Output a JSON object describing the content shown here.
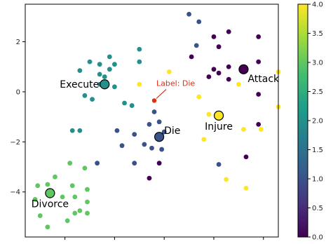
{
  "chart_data": {
    "type": "scatter",
    "title": "",
    "xlabel": "",
    "ylabel": "",
    "xlim": [
      -1.8,
      3.3
    ],
    "ylim": [
      -5.8,
      3.5
    ],
    "y_ticks": [
      -4,
      -2,
      0,
      2
    ],
    "y_tick_labels": [
      "−4",
      "−2",
      "0",
      "2"
    ],
    "x_ticks": [
      -1.0,
      0.0,
      1.0,
      2.0,
      3.0
    ],
    "grid": false,
    "colormap": "viridis",
    "colorbar": {
      "vmin": 0.0,
      "vmax": 4.0,
      "ticks": [
        0.0,
        0.5,
        1.0,
        1.5,
        2.0,
        2.5,
        3.0,
        3.5,
        4.0
      ],
      "tick_labels": [
        "0.0",
        "0.5",
        "1.0",
        "1.5",
        "2.0",
        "2.5",
        "3.0",
        "3.5",
        "4.0"
      ]
    },
    "points": [
      {
        "x": 1.5,
        "y": 3.1,
        "c": 1
      },
      {
        "x": 1.7,
        "y": 2.8,
        "c": 1
      },
      {
        "x": 2.3,
        "y": 2.4,
        "c": 0
      },
      {
        "x": 2.0,
        "y": 2.2,
        "c": 0
      },
      {
        "x": 2.9,
        "y": 2.2,
        "c": 0
      },
      {
        "x": 1.65,
        "y": 1.85,
        "c": 1
      },
      {
        "x": 2.1,
        "y": 1.8,
        "c": 0
      },
      {
        "x": 1.55,
        "y": 1.4,
        "c": 0
      },
      {
        "x": 2.9,
        "y": 1.2,
        "c": 0
      },
      {
        "x": 2.3,
        "y": 1.0,
        "c": 0
      },
      {
        "x": 2.0,
        "y": 0.9,
        "c": 0
      },
      {
        "x": 2.1,
        "y": 0.75,
        "c": 0
      },
      {
        "x": 1.9,
        "y": 0.6,
        "c": 0
      },
      {
        "x": 2.3,
        "y": 0.5,
        "c": 0
      },
      {
        "x": 2.5,
        "y": 0.3,
        "c": 4
      },
      {
        "x": 2.9,
        "y": -0.1,
        "c": 0
      },
      {
        "x": 1.1,
        "y": 0.8,
        "c": 4
      },
      {
        "x": 3.3,
        "y": 0.8,
        "c": 4
      },
      {
        "x": 0.5,
        "y": 0.3,
        "c": 4
      },
      {
        "x": 1.7,
        "y": -0.2,
        "c": 4
      },
      {
        "x": 1.9,
        "y": -0.9,
        "c": 4
      },
      {
        "x": 2.6,
        "y": -1.5,
        "c": 4
      },
      {
        "x": 2.95,
        "y": -1.5,
        "c": 4
      },
      {
        "x": 3.3,
        "y": -0.6,
        "c": 4
      },
      {
        "x": 2.9,
        "y": -1.3,
        "c": 0
      },
      {
        "x": 1.8,
        "y": -1.9,
        "c": 4
      },
      {
        "x": 2.1,
        "y": -2.9,
        "c": 1
      },
      {
        "x": 2.65,
        "y": -2.6,
        "c": 0
      },
      {
        "x": 2.25,
        "y": -3.5,
        "c": 4
      },
      {
        "x": 2.65,
        "y": -3.85,
        "c": 4
      },
      {
        "x": -0.1,
        "y": 1.4,
        "c": 2
      },
      {
        "x": 0.5,
        "y": 1.7,
        "c": 2
      },
      {
        "x": 0.5,
        "y": 1.2,
        "c": 2
      },
      {
        "x": -0.5,
        "y": 1.2,
        "c": 2
      },
      {
        "x": -0.3,
        "y": 1.1,
        "c": 2
      },
      {
        "x": 0.0,
        "y": 1.1,
        "c": 2
      },
      {
        "x": -0.7,
        "y": 0.85,
        "c": 2
      },
      {
        "x": -0.1,
        "y": 0.9,
        "c": 2
      },
      {
        "x": -0.3,
        "y": 0.7,
        "c": 2
      },
      {
        "x": -0.2,
        "y": 0.6,
        "c": 2
      },
      {
        "x": -0.3,
        "y": 0.3,
        "c": 2
      },
      {
        "x": 0.0,
        "y": 0.2,
        "c": 2
      },
      {
        "x": -0.6,
        "y": -0.15,
        "c": 2
      },
      {
        "x": -0.45,
        "y": -0.3,
        "c": 2
      },
      {
        "x": 0.2,
        "y": -0.45,
        "c": 2
      },
      {
        "x": 0.35,
        "y": -0.55,
        "c": 2
      },
      {
        "x": 0.8,
        "y": -0.8,
        "c": 1
      },
      {
        "x": 0.9,
        "y": -1.2,
        "c": 1
      },
      {
        "x": 0.7,
        "y": -1.3,
        "c": 1
      },
      {
        "x": -0.7,
        "y": -1.55,
        "c": 2
      },
      {
        "x": -0.85,
        "y": -1.55,
        "c": 2
      },
      {
        "x": 0.05,
        "y": -1.55,
        "c": 1
      },
      {
        "x": 0.4,
        "y": -1.7,
        "c": 1
      },
      {
        "x": 1.0,
        "y": -1.6,
        "c": 1
      },
      {
        "x": 0.15,
        "y": -2.15,
        "c": 1
      },
      {
        "x": 0.6,
        "y": -2.1,
        "c": 1
      },
      {
        "x": 0.75,
        "y": -2.25,
        "c": 1
      },
      {
        "x": 0.95,
        "y": -2.3,
        "c": 1
      },
      {
        "x": -0.35,
        "y": -2.85,
        "c": 1
      },
      {
        "x": 0.4,
        "y": -2.85,
        "c": 1
      },
      {
        "x": 0.9,
        "y": -2.85,
        "c": 0
      },
      {
        "x": 0.7,
        "y": -3.45,
        "c": 0
      },
      {
        "x": -0.9,
        "y": -2.85,
        "c": 3
      },
      {
        "x": -0.6,
        "y": -3.05,
        "c": 3
      },
      {
        "x": -1.2,
        "y": -3.4,
        "c": 3
      },
      {
        "x": -1.35,
        "y": -3.7,
        "c": 3
      },
      {
        "x": -1.55,
        "y": -3.75,
        "c": 3
      },
      {
        "x": -0.85,
        "y": -3.75,
        "c": 3
      },
      {
        "x": -0.55,
        "y": -3.9,
        "c": 3
      },
      {
        "x": -1.6,
        "y": -4.3,
        "c": 3
      },
      {
        "x": -1.05,
        "y": -4.2,
        "c": 3
      },
      {
        "x": -0.8,
        "y": -4.2,
        "c": 3
      },
      {
        "x": -0.55,
        "y": -4.4,
        "c": 3
      },
      {
        "x": -0.7,
        "y": -4.75,
        "c": 3
      },
      {
        "x": -0.8,
        "y": -4.85,
        "c": 3
      },
      {
        "x": -0.55,
        "y": -4.85,
        "c": 3
      },
      {
        "x": -1.5,
        "y": -4.95,
        "c": 3
      },
      {
        "x": -0.95,
        "y": -5.15,
        "c": 3
      },
      {
        "x": -1.35,
        "y": -5.4,
        "c": 3
      }
    ],
    "labeled_points": [
      {
        "word": "Attack",
        "x": 2.6,
        "y": 0.9,
        "c": 0,
        "label_pos": "right-below"
      },
      {
        "word": "Execute",
        "x": -0.2,
        "y": 0.3,
        "c": 2,
        "label_pos": "left"
      },
      {
        "word": "Die",
        "x": 0.9,
        "y": -1.8,
        "c": 1,
        "label_pos": "right-above"
      },
      {
        "word": "Injure",
        "x": 2.1,
        "y": -0.95,
        "c": 4,
        "label_pos": "below"
      },
      {
        "word": "Divorce",
        "x": -1.3,
        "y": -4.05,
        "c": 3,
        "label_pos": "below"
      }
    ],
    "annotation": {
      "text": "Label: Die",
      "color": "#e8280c",
      "point": {
        "x": 0.8,
        "y": -0.35
      }
    }
  }
}
